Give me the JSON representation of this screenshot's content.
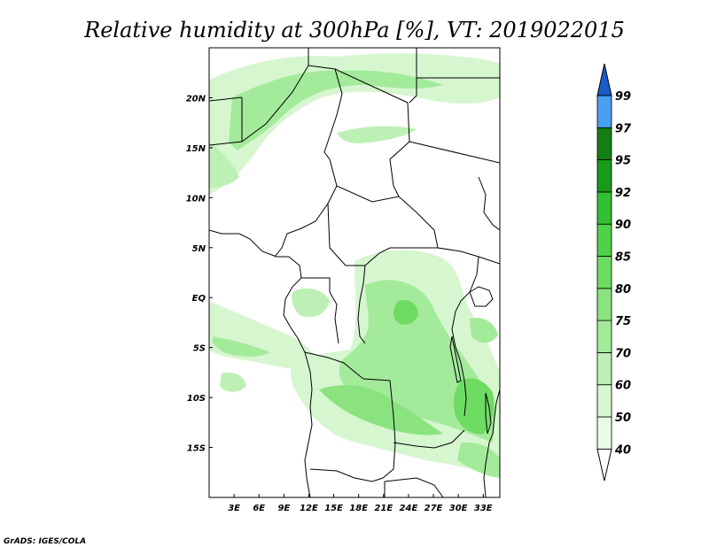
{
  "title": "Relative humidity at 300hPa [%], VT: 2019022015",
  "credit": "GrADS: IGES/COLA",
  "map": {
    "lon_range": [
      0,
      35
    ],
    "lat_range": [
      -20,
      25
    ],
    "x_ticks": [
      "3E",
      "6E",
      "9E",
      "12E",
      "15E",
      "18E",
      "21E",
      "24E",
      "27E",
      "30E",
      "33E"
    ],
    "y_ticks": [
      "20N",
      "15N",
      "10N",
      "5N",
      "EQ",
      "5S",
      "10S",
      "15S"
    ]
  },
  "colorbar": {
    "labels": [
      "40",
      "50",
      "60",
      "70",
      "75",
      "80",
      "85",
      "90",
      "92",
      "95",
      "97",
      "99"
    ],
    "colors": [
      "#ffffff",
      "#eafbe6",
      "#d6f6d0",
      "#bdf0b5",
      "#a4ea9b",
      "#8be380",
      "#6edb63",
      "#50d04a",
      "#34be34",
      "#1a9a1a",
      "#147e14",
      "#4a9ff0",
      "#2070e0",
      "#1a5cc8"
    ]
  }
}
